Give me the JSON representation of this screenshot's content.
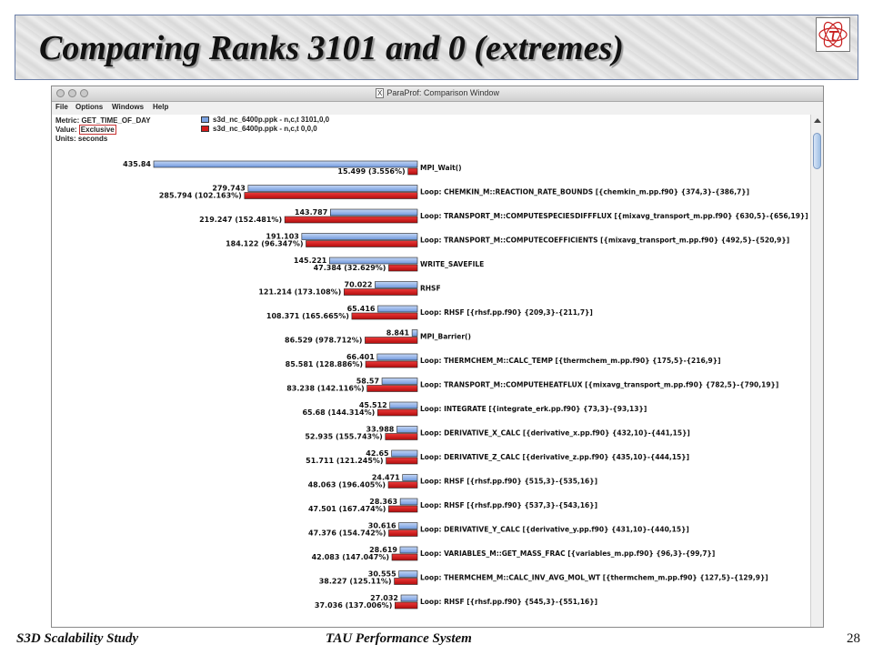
{
  "slide": {
    "title": "Comparing Ranks 3101 and 0 (extremes)",
    "logo_symbol": "τ",
    "footer_left": "S3D Scalability Study",
    "footer_center": "TAU Performance System",
    "page_number": "28"
  },
  "window": {
    "title": "ParaProf: Comparison Window",
    "menu": [
      "File",
      "Options",
      "Windows",
      "Help"
    ],
    "metric_label": "Metric: GET_TIME_OF_DAY",
    "value_label": "Value: ",
    "value_text": "Exclusive",
    "units_label": "Units: seconds",
    "legend": [
      {
        "label": "s3d_nc_6400p.ppk - n,c,t 3101,0,0",
        "color": "#7ba3e3"
      },
      {
        "label": "s3d_nc_6400p.ppk - n,c,t 0,0,0",
        "color": "#d41a1a"
      }
    ]
  },
  "chart_data": {
    "type": "bar",
    "orientation": "horizontal",
    "series": [
      {
        "name": "s3d_nc_6400p.ppk - n,c,t 3101,0,0",
        "color": "#7ba3e3",
        "values": [
          435.84,
          279.743,
          143.787,
          191.103,
          145.221,
          70.022,
          65.416,
          8.841,
          66.401,
          58.57,
          45.512,
          33.988,
          42.65,
          24.471,
          28.363,
          30.616,
          28.619,
          30.555,
          27.032
        ],
        "labels": [
          "435.84",
          "279.743",
          "143.787",
          "191.103",
          "145.221",
          "70.022",
          "65.416",
          "8.841",
          "66.401",
          "58.57",
          "45.512",
          "33.988",
          "42.65",
          "24.471",
          "28.363",
          "30.616",
          "28.619",
          "30.555",
          "27.032"
        ]
      },
      {
        "name": "s3d_nc_6400p.ppk - n,c,t 0,0,0",
        "color": "#d41a1a",
        "values": [
          15.499,
          285.794,
          219.247,
          184.122,
          47.384,
          121.214,
          108.371,
          86.529,
          85.581,
          83.238,
          65.68,
          52.935,
          51.711,
          48.063,
          47.501,
          47.376,
          42.083,
          38.227,
          37.036
        ],
        "labels": [
          "15.499 (3.556%)",
          "285.794 (102.163%)",
          "219.247 (152.481%)",
          "184.122 (96.347%)",
          "47.384 (32.629%)",
          "121.214 (173.108%)",
          "108.371 (165.665%)",
          "86.529 (978.712%)",
          "85.581 (128.886%)",
          "83.238 (142.116%)",
          "65.68 (144.314%)",
          "52.935 (155.743%)",
          "51.711 (121.245%)",
          "48.063 (196.405%)",
          "47.501 (167.474%)",
          "47.376 (154.742%)",
          "42.083 (147.047%)",
          "38.227 (125.11%)",
          "37.036 (137.006%)"
        ]
      }
    ],
    "categories": [
      "MPI_Wait()",
      "Loop: CHEMKIN_M::REACTION_RATE_BOUNDS [{chemkin_m.pp.f90} {374,3}-{386,7}]",
      "Loop: TRANSPORT_M::COMPUTESPECIESDIFFFLUX [{mixavg_transport_m.pp.f90} {630,5}-{656,19}]",
      "Loop: TRANSPORT_M::COMPUTECOEFFICIENTS [{mixavg_transport_m.pp.f90} {492,5}-{520,9}]",
      "WRITE_SAVEFILE",
      "RHSF",
      "Loop: RHSF [{rhsf.pp.f90} {209,3}-{211,7}]",
      "MPI_Barrier()",
      "Loop: THERMCHEM_M::CALC_TEMP [{thermchem_m.pp.f90} {175,5}-{216,9}]",
      "Loop: TRANSPORT_M::COMPUTEHEATFLUX [{mixavg_transport_m.pp.f90} {782,5}-{790,19}]",
      "Loop: INTEGRATE [{integrate_erk.pp.f90} {73,3}-{93,13}]",
      "Loop: DERIVATIVE_X_CALC [{derivative_x.pp.f90} {432,10}-{441,15}]",
      "Loop: DERIVATIVE_Z_CALC [{derivative_z.pp.f90} {435,10}-{444,15}]",
      "Loop: RHSF [{rhsf.pp.f90} {515,3}-{535,16}]",
      "Loop: RHSF [{rhsf.pp.f90} {537,3}-{543,16}]",
      "Loop: DERIVATIVE_Y_CALC [{derivative_y.pp.f90} {431,10}-{440,15}]",
      "Loop: VARIABLES_M::GET_MASS_FRAC [{variables_m.pp.f90} {96,3}-{99,7}]",
      "Loop: THERMCHEM_M::CALC_INV_AVG_MOL_WT [{thermchem_m.pp.f90} {127,5}-{129,9}]",
      "Loop: RHSF [{rhsf.pp.f90} {545,3}-{551,16}]"
    ]
  }
}
